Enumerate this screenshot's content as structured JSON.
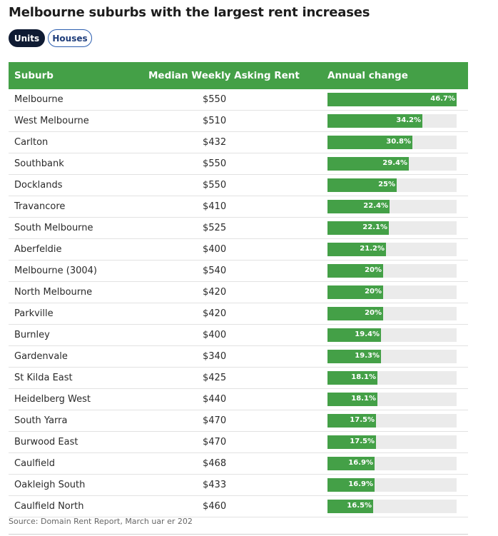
{
  "title": "Melbourne suburbs with the largest rent increases",
  "toggles": [
    {
      "label": "Units",
      "active": true
    },
    {
      "label": "Houses",
      "active": false
    }
  ],
  "colors": {
    "bar": "#44a047",
    "header": "#44a047",
    "track": "#ebebeb",
    "active_toggle": "#0f1b33"
  },
  "source": "Source: Domain Rent Report, March  uar  er 202",
  "chart_data": {
    "type": "table",
    "columns": [
      "Suburb",
      "Median Weekly Asking Rent",
      "Annual change"
    ],
    "max": 46.7,
    "rows": [
      {
        "suburb": "Melbourne",
        "rent": "$550",
        "change": 46.7,
        "label": "46.7%"
      },
      {
        "suburb": "West Melbourne",
        "rent": "$510",
        "change": 34.2,
        "label": "34.2%"
      },
      {
        "suburb": "Carlton",
        "rent": "$432",
        "change": 30.8,
        "label": "30.8%"
      },
      {
        "suburb": "Southbank",
        "rent": "$550",
        "change": 29.4,
        "label": "29.4%"
      },
      {
        "suburb": "Docklands",
        "rent": "$550",
        "change": 25,
        "label": "25%"
      },
      {
        "suburb": "Travancore",
        "rent": "$410",
        "change": 22.4,
        "label": "22.4%"
      },
      {
        "suburb": "South Melbourne",
        "rent": "$525",
        "change": 22.1,
        "label": "22.1%"
      },
      {
        "suburb": "Aberfeldie",
        "rent": "$400",
        "change": 21.2,
        "label": "21.2%"
      },
      {
        "suburb": "Melbourne (3004)",
        "rent": "$540",
        "change": 20,
        "label": "20%"
      },
      {
        "suburb": "North Melbourne",
        "rent": "$420",
        "change": 20,
        "label": "20%"
      },
      {
        "suburb": "Parkville",
        "rent": "$420",
        "change": 20,
        "label": "20%"
      },
      {
        "suburb": "Burnley",
        "rent": "$400",
        "change": 19.4,
        "label": "19.4%"
      },
      {
        "suburb": "Gardenvale",
        "rent": "$340",
        "change": 19.3,
        "label": "19.3%"
      },
      {
        "suburb": "St Kilda East",
        "rent": "$425",
        "change": 18.1,
        "label": "18.1%"
      },
      {
        "suburb": "Heidelberg West",
        "rent": "$440",
        "change": 18.1,
        "label": "18.1%"
      },
      {
        "suburb": "South Yarra",
        "rent": "$470",
        "change": 17.5,
        "label": "17.5%"
      },
      {
        "suburb": "Burwood East",
        "rent": "$470",
        "change": 17.5,
        "label": "17.5%"
      },
      {
        "suburb": "Caulfield",
        "rent": "$468",
        "change": 16.9,
        "label": "16.9%"
      },
      {
        "suburb": "Oakleigh South",
        "rent": "$433",
        "change": 16.9,
        "label": "16.9%"
      },
      {
        "suburb": "Caulfield North",
        "rent": "$460",
        "change": 16.5,
        "label": "16.5%"
      }
    ]
  }
}
